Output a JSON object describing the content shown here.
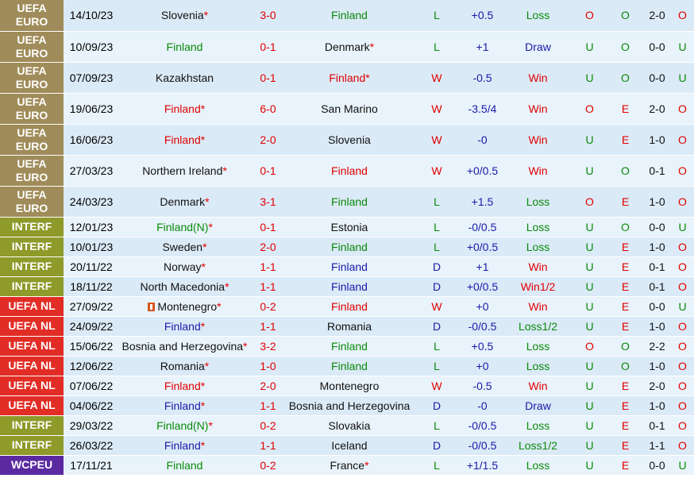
{
  "colors": {
    "win_red": "#e10000",
    "green": "#0a8a0a",
    "blue": "#1a1aa8",
    "euro": "#a08c5a",
    "interf": "#8e9a2a",
    "nl": "#e12d26",
    "wc": "#5b2aa0"
  },
  "rows": [
    {
      "comp": "UEFA EURO",
      "cc": "euro",
      "date": "14/10/23",
      "home": "Slovenia",
      "hs": "*",
      "hc": "blk",
      "score": "3-0",
      "away": "Finland",
      "as": "",
      "ac": "green",
      "wl": "L",
      "wlc": "green",
      "hcap": "+0.5",
      "hcapc": "blue",
      "res": "Loss",
      "resc": "green",
      "ou": "O",
      "ouc": "red",
      "oe": "O",
      "oec": "green",
      "ht": "2-0",
      "last": "O",
      "lastc": "red",
      "h": 39
    },
    {
      "comp": "UEFA EURO",
      "cc": "euro",
      "date": "10/09/23",
      "home": "Finland",
      "hs": "",
      "hc": "green",
      "score": "0-1",
      "away": "Denmark",
      "as": "*",
      "ac": "blk",
      "wl": "L",
      "wlc": "green",
      "hcap": "+1",
      "hcapc": "blue",
      "res": "Draw",
      "resc": "blue",
      "ou": "U",
      "ouc": "green",
      "oe": "O",
      "oec": "green",
      "ht": "0-0",
      "last": "U",
      "lastc": "green",
      "h": 39
    },
    {
      "comp": "UEFA EURO",
      "cc": "euro",
      "date": "07/09/23",
      "home": "Kazakhstan",
      "hs": "",
      "hc": "blk",
      "score": "0-1",
      "away": "Finland",
      "as": "*",
      "ac": "red",
      "wl": "W",
      "wlc": "red",
      "hcap": "-0.5",
      "hcapc": "blue",
      "res": "Win",
      "resc": "red",
      "ou": "U",
      "ouc": "green",
      "oe": "O",
      "oec": "green",
      "ht": "0-0",
      "last": "U",
      "lastc": "green",
      "h": 39
    },
    {
      "comp": "UEFA EURO",
      "cc": "euro",
      "date": "19/06/23",
      "home": "Finland",
      "hs": "*",
      "hc": "red",
      "score": "6-0",
      "away": "San Marino",
      "as": "",
      "ac": "blk",
      "wl": "W",
      "wlc": "red",
      "hcap": "-3.5/4",
      "hcapc": "blue",
      "res": "Win",
      "resc": "red",
      "ou": "O",
      "ouc": "red",
      "oe": "E",
      "oec": "red",
      "ht": "2-0",
      "last": "O",
      "lastc": "red",
      "h": 39
    },
    {
      "comp": "UEFA EURO",
      "cc": "euro",
      "date": "16/06/23",
      "home": "Finland",
      "hs": "*",
      "hc": "red",
      "score": "2-0",
      "away": "Slovenia",
      "as": "",
      "ac": "blk",
      "wl": "W",
      "wlc": "red",
      "hcap": "-0",
      "hcapc": "blue",
      "res": "Win",
      "resc": "red",
      "ou": "U",
      "ouc": "green",
      "oe": "E",
      "oec": "red",
      "ht": "1-0",
      "last": "O",
      "lastc": "red",
      "h": 39
    },
    {
      "comp": "UEFA EURO",
      "cc": "euro",
      "date": "27/03/23",
      "home": "Northern Ireland",
      "hs": "*",
      "hc": "blk",
      "score": "0-1",
      "away": "Finland",
      "as": "",
      "ac": "red",
      "wl": "W",
      "wlc": "red",
      "hcap": "+0/0.5",
      "hcapc": "blue",
      "res": "Win",
      "resc": "red",
      "ou": "U",
      "ouc": "green",
      "oe": "O",
      "oec": "green",
      "ht": "0-1",
      "last": "O",
      "lastc": "red",
      "h": 39
    },
    {
      "comp": "UEFA EURO",
      "cc": "euro",
      "date": "24/03/23",
      "home": "Denmark",
      "hs": "*",
      "hc": "blk",
      "score": "3-1",
      "away": "Finland",
      "as": "",
      "ac": "green",
      "wl": "L",
      "wlc": "green",
      "hcap": "+1.5",
      "hcapc": "blue",
      "res": "Loss",
      "resc": "green",
      "ou": "O",
      "ouc": "red",
      "oe": "E",
      "oec": "red",
      "ht": "1-0",
      "last": "O",
      "lastc": "red",
      "h": 39
    },
    {
      "comp": "INTERF",
      "cc": "interf",
      "date": "12/01/23",
      "home": "Finland(N)",
      "hs": "*",
      "hc": "green",
      "score": "0-1",
      "away": "Estonia",
      "as": "",
      "ac": "blk",
      "wl": "L",
      "wlc": "green",
      "hcap": "-0/0.5",
      "hcapc": "blue",
      "res": "Loss",
      "resc": "green",
      "ou": "U",
      "ouc": "green",
      "oe": "O",
      "oec": "green",
      "ht": "0-0",
      "last": "U",
      "lastc": "green",
      "h": 25
    },
    {
      "comp": "INTERF",
      "cc": "interf",
      "date": "10/01/23",
      "home": "Sweden",
      "hs": "*",
      "hc": "blk",
      "score": "2-0",
      "away": "Finland",
      "as": "",
      "ac": "green",
      "wl": "L",
      "wlc": "green",
      "hcap": "+0/0.5",
      "hcapc": "blue",
      "res": "Loss",
      "resc": "green",
      "ou": "U",
      "ouc": "green",
      "oe": "E",
      "oec": "red",
      "ht": "1-0",
      "last": "O",
      "lastc": "red",
      "h": 25
    },
    {
      "comp": "INTERF",
      "cc": "interf",
      "date": "20/11/22",
      "home": "Norway",
      "hs": "*",
      "hc": "blk",
      "score": "1-1",
      "away": "Finland",
      "as": "",
      "ac": "blue",
      "wl": "D",
      "wlc": "blue",
      "hcap": "+1",
      "hcapc": "blue",
      "res": "Win",
      "resc": "red",
      "ou": "U",
      "ouc": "green",
      "oe": "E",
      "oec": "red",
      "ht": "0-1",
      "last": "O",
      "lastc": "red",
      "h": 25
    },
    {
      "comp": "INTERF",
      "cc": "interf",
      "date": "18/11/22",
      "home": "North Macedonia",
      "hs": "*",
      "hc": "blk",
      "score": "1-1",
      "away": "Finland",
      "as": "",
      "ac": "blue",
      "wl": "D",
      "wlc": "blue",
      "hcap": "+0/0.5",
      "hcapc": "blue",
      "res": "Win1/2",
      "resc": "red",
      "ou": "U",
      "ouc": "green",
      "oe": "E",
      "oec": "red",
      "ht": "0-1",
      "last": "O",
      "lastc": "red",
      "h": 25
    },
    {
      "comp": "UEFA NL",
      "cc": "nl",
      "date": "27/09/22",
      "home": "Montenegro",
      "hs": "*",
      "hc": "blk",
      "flag": true,
      "score": "0-2",
      "away": "Finland",
      "as": "",
      "ac": "red",
      "wl": "W",
      "wlc": "red",
      "hcap": "+0",
      "hcapc": "blue",
      "res": "Win",
      "resc": "red",
      "ou": "U",
      "ouc": "green",
      "oe": "E",
      "oec": "red",
      "ht": "0-0",
      "last": "U",
      "lastc": "green",
      "h": 25
    },
    {
      "comp": "UEFA NL",
      "cc": "nl",
      "date": "24/09/22",
      "home": "Finland",
      "hs": "*",
      "hc": "blue",
      "score": "1-1",
      "away": "Romania",
      "as": "",
      "ac": "blk",
      "wl": "D",
      "wlc": "blue",
      "hcap": "-0/0.5",
      "hcapc": "blue",
      "res": "Loss1/2",
      "resc": "green",
      "ou": "U",
      "ouc": "green",
      "oe": "E",
      "oec": "red",
      "ht": "1-0",
      "last": "O",
      "lastc": "red",
      "h": 25
    },
    {
      "comp": "UEFA NL",
      "cc": "nl",
      "date": "15/06/22",
      "home": "Bosnia and Herzegovina",
      "hs": "*",
      "hc": "blk",
      "score": "3-2",
      "away": "Finland",
      "as": "",
      "ac": "green",
      "wl": "L",
      "wlc": "green",
      "hcap": "+0.5",
      "hcapc": "blue",
      "res": "Loss",
      "resc": "green",
      "ou": "O",
      "ouc": "red",
      "oe": "O",
      "oec": "green",
      "ht": "2-2",
      "last": "O",
      "lastc": "red",
      "h": 25
    },
    {
      "comp": "UEFA NL",
      "cc": "nl",
      "date": "12/06/22",
      "home": "Romania",
      "hs": "*",
      "hc": "blk",
      "score": "1-0",
      "away": "Finland",
      "as": "",
      "ac": "green",
      "wl": "L",
      "wlc": "green",
      "hcap": "+0",
      "hcapc": "blue",
      "res": "Loss",
      "resc": "green",
      "ou": "U",
      "ouc": "green",
      "oe": "O",
      "oec": "green",
      "ht": "1-0",
      "last": "O",
      "lastc": "red",
      "h": 25
    },
    {
      "comp": "UEFA NL",
      "cc": "nl",
      "date": "07/06/22",
      "home": "Finland",
      "hs": "*",
      "hc": "red",
      "score": "2-0",
      "away": "Montenegro",
      "as": "",
      "ac": "blk",
      "wl": "W",
      "wlc": "red",
      "hcap": "-0.5",
      "hcapc": "blue",
      "res": "Win",
      "resc": "red",
      "ou": "U",
      "ouc": "green",
      "oe": "E",
      "oec": "red",
      "ht": "2-0",
      "last": "O",
      "lastc": "red",
      "h": 25
    },
    {
      "comp": "UEFA NL",
      "cc": "nl",
      "date": "04/06/22",
      "home": "Finland",
      "hs": "*",
      "hc": "blue",
      "score": "1-1",
      "away": "Bosnia and Herzegovina",
      "as": "",
      "ac": "blk",
      "wl": "D",
      "wlc": "blue",
      "hcap": "-0",
      "hcapc": "blue",
      "res": "Draw",
      "resc": "blue",
      "ou": "U",
      "ouc": "green",
      "oe": "E",
      "oec": "red",
      "ht": "1-0",
      "last": "O",
      "lastc": "red",
      "h": 25
    },
    {
      "comp": "INTERF",
      "cc": "interf",
      "date": "29/03/22",
      "home": "Finland(N)",
      "hs": "*",
      "hc": "green",
      "score": "0-2",
      "away": "Slovakia",
      "as": "",
      "ac": "blk",
      "wl": "L",
      "wlc": "green",
      "hcap": "-0/0.5",
      "hcapc": "blue",
      "res": "Loss",
      "resc": "green",
      "ou": "U",
      "ouc": "green",
      "oe": "E",
      "oec": "red",
      "ht": "0-1",
      "last": "O",
      "lastc": "red",
      "h": 25
    },
    {
      "comp": "INTERF",
      "cc": "interf",
      "date": "26/03/22",
      "home": "Finland",
      "hs": "*",
      "hc": "blue",
      "score": "1-1",
      "away": "Iceland",
      "as": "",
      "ac": "blk",
      "wl": "D",
      "wlc": "blue",
      "hcap": "-0/0.5",
      "hcapc": "blue",
      "res": "Loss1/2",
      "resc": "green",
      "ou": "U",
      "ouc": "green",
      "oe": "E",
      "oec": "red",
      "ht": "1-1",
      "last": "O",
      "lastc": "red",
      "h": 25
    },
    {
      "comp": "WCPEU",
      "cc": "wc",
      "date": "17/11/21",
      "home": "Finland",
      "hs": "",
      "hc": "green",
      "score": "0-2",
      "away": "France",
      "as": "*",
      "ac": "blk",
      "wl": "L",
      "wlc": "green",
      "hcap": "+1/1.5",
      "hcapc": "blue",
      "res": "Loss",
      "resc": "green",
      "ou": "U",
      "ouc": "green",
      "oe": "E",
      "oec": "red",
      "ht": "0-0",
      "last": "U",
      "lastc": "green",
      "h": 25
    }
  ]
}
